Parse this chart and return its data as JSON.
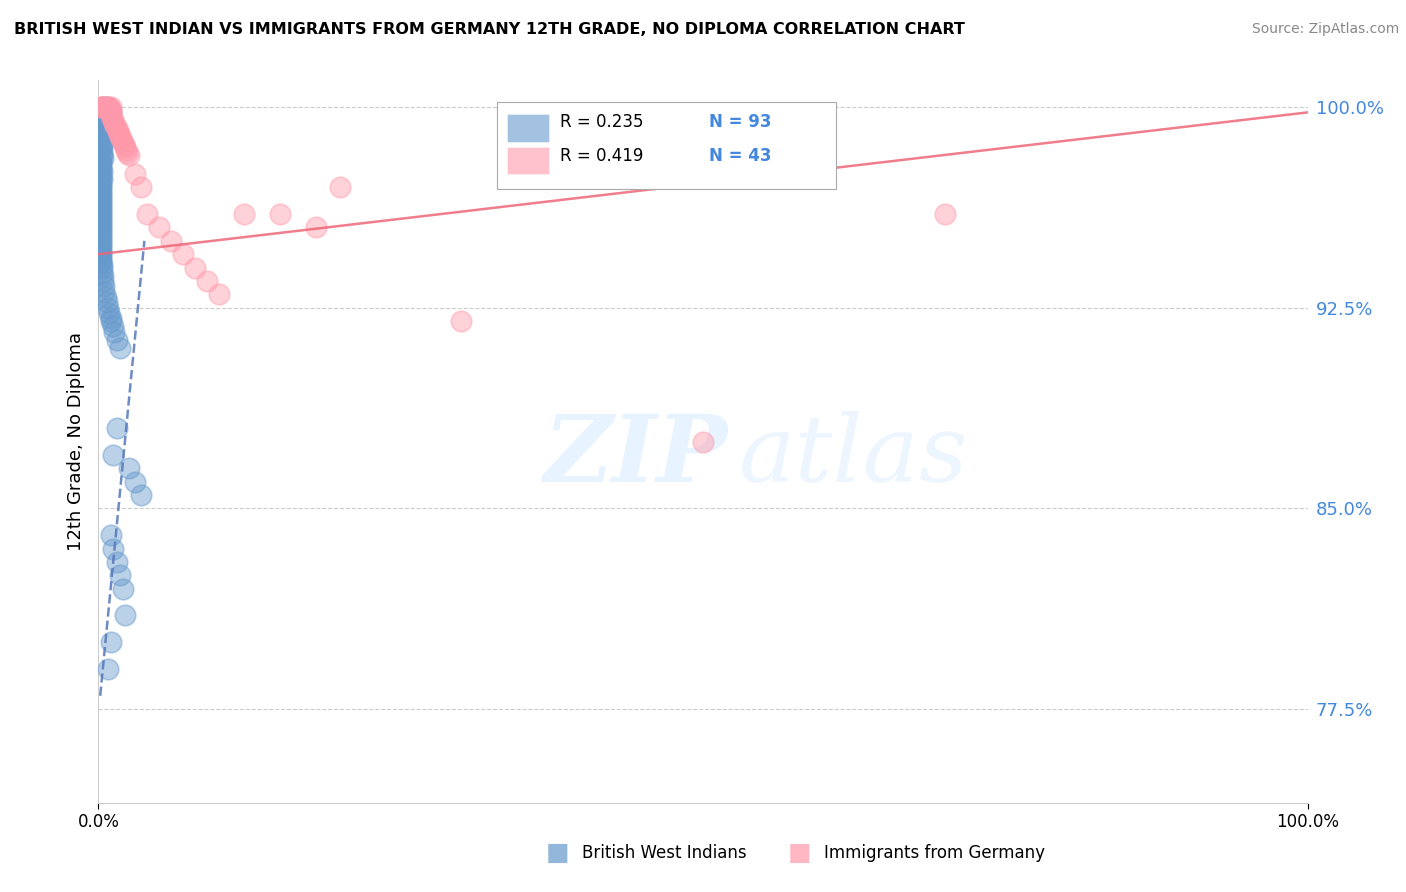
{
  "title": "BRITISH WEST INDIAN VS IMMIGRANTS FROM GERMANY 12TH GRADE, NO DIPLOMA CORRELATION CHART",
  "source": "Source: ZipAtlas.com",
  "ylabel": "12th Grade, No Diploma",
  "xlim": [
    0.0,
    1.0
  ],
  "ylim": [
    0.74,
    1.01
  ],
  "yticks": [
    0.775,
    0.85,
    0.925,
    1.0
  ],
  "ytick_labels": [
    "77.5%",
    "85.0%",
    "92.5%",
    "100.0%"
  ],
  "xticks": [
    0.0,
    1.0
  ],
  "xtick_labels": [
    "0.0%",
    "100.0%"
  ],
  "legend_R1": "R = 0.235",
  "legend_N1": "N = 93",
  "legend_R2": "R = 0.419",
  "legend_N2": "N = 43",
  "series1_label": "British West Indians",
  "series2_label": "Immigrants from Germany",
  "series1_color": "#6699cc",
  "series2_color": "#ff99aa",
  "series1_line_color": "#5577bb",
  "series2_line_color": "#ee6677",
  "watermark_zip": "ZIP",
  "watermark_atlas": "atlas",
  "background_color": "#ffffff",
  "grid_color": "#cccccc",
  "blue_x": [
    0.004,
    0.006,
    0.006,
    0.009,
    0.01,
    0.003,
    0.003,
    0.002,
    0.004,
    0.003,
    0.005,
    0.004,
    0.003,
    0.003,
    0.005,
    0.004,
    0.003,
    0.004,
    0.002,
    0.003,
    0.002,
    0.003,
    0.003,
    0.004,
    0.002,
    0.002,
    0.002,
    0.002,
    0.003,
    0.002,
    0.002,
    0.003,
    0.002,
    0.002,
    0.002,
    0.002,
    0.002,
    0.002,
    0.002,
    0.002,
    0.002,
    0.002,
    0.002,
    0.002,
    0.002,
    0.002,
    0.002,
    0.002,
    0.002,
    0.002,
    0.002,
    0.002,
    0.002,
    0.002,
    0.002,
    0.002,
    0.002,
    0.002,
    0.002,
    0.002,
    0.002,
    0.002,
    0.002,
    0.003,
    0.003,
    0.003,
    0.004,
    0.004,
    0.005,
    0.005,
    0.006,
    0.007,
    0.008,
    0.009,
    0.01,
    0.01,
    0.012,
    0.013,
    0.015,
    0.018,
    0.015,
    0.012,
    0.025,
    0.03,
    0.035,
    0.01,
    0.012,
    0.015,
    0.018,
    0.02,
    0.022,
    0.01,
    0.008
  ],
  "blue_y": [
    1.0,
    1.0,
    0.999,
    0.999,
    0.998,
    0.997,
    0.996,
    0.996,
    0.995,
    0.994,
    0.993,
    0.993,
    0.992,
    0.991,
    0.99,
    0.989,
    0.988,
    0.987,
    0.986,
    0.985,
    0.984,
    0.983,
    0.982,
    0.981,
    0.98,
    0.979,
    0.978,
    0.977,
    0.976,
    0.975,
    0.974,
    0.973,
    0.972,
    0.971,
    0.97,
    0.969,
    0.968,
    0.967,
    0.966,
    0.965,
    0.964,
    0.963,
    0.962,
    0.961,
    0.96,
    0.959,
    0.958,
    0.957,
    0.956,
    0.955,
    0.954,
    0.953,
    0.952,
    0.951,
    0.95,
    0.949,
    0.948,
    0.947,
    0.946,
    0.945,
    0.944,
    0.943,
    0.942,
    0.941,
    0.94,
    0.938,
    0.937,
    0.935,
    0.933,
    0.931,
    0.929,
    0.927,
    0.925,
    0.923,
    0.921,
    0.92,
    0.918,
    0.916,
    0.913,
    0.91,
    0.88,
    0.87,
    0.865,
    0.86,
    0.855,
    0.84,
    0.835,
    0.83,
    0.825,
    0.82,
    0.81,
    0.8,
    0.79
  ],
  "pink_x": [
    0.002,
    0.003,
    0.004,
    0.005,
    0.006,
    0.007,
    0.008,
    0.009,
    0.01,
    0.01,
    0.01,
    0.01,
    0.011,
    0.012,
    0.013,
    0.014,
    0.015,
    0.016,
    0.017,
    0.018,
    0.019,
    0.02,
    0.021,
    0.022,
    0.023,
    0.024,
    0.025,
    0.03,
    0.035,
    0.04,
    0.05,
    0.06,
    0.07,
    0.08,
    0.09,
    0.1,
    0.12,
    0.15,
    0.18,
    0.2,
    0.3,
    0.5,
    0.7
  ],
  "pink_y": [
    1.0,
    1.0,
    1.0,
    1.0,
    1.0,
    1.0,
    1.0,
    1.0,
    1.0,
    0.999,
    0.998,
    0.997,
    0.996,
    0.995,
    0.994,
    0.993,
    0.992,
    0.991,
    0.99,
    0.989,
    0.988,
    0.987,
    0.986,
    0.985,
    0.984,
    0.983,
    0.982,
    0.975,
    0.97,
    0.96,
    0.955,
    0.95,
    0.945,
    0.94,
    0.935,
    0.93,
    0.96,
    0.96,
    0.955,
    0.97,
    0.92,
    0.875,
    0.96
  ],
  "blue_line_x": [
    0.0015,
    0.038
  ],
  "blue_line_y": [
    0.78,
    0.95
  ],
  "pink_line_x": [
    0.0,
    1.0
  ],
  "pink_line_y": [
    0.945,
    0.998
  ]
}
